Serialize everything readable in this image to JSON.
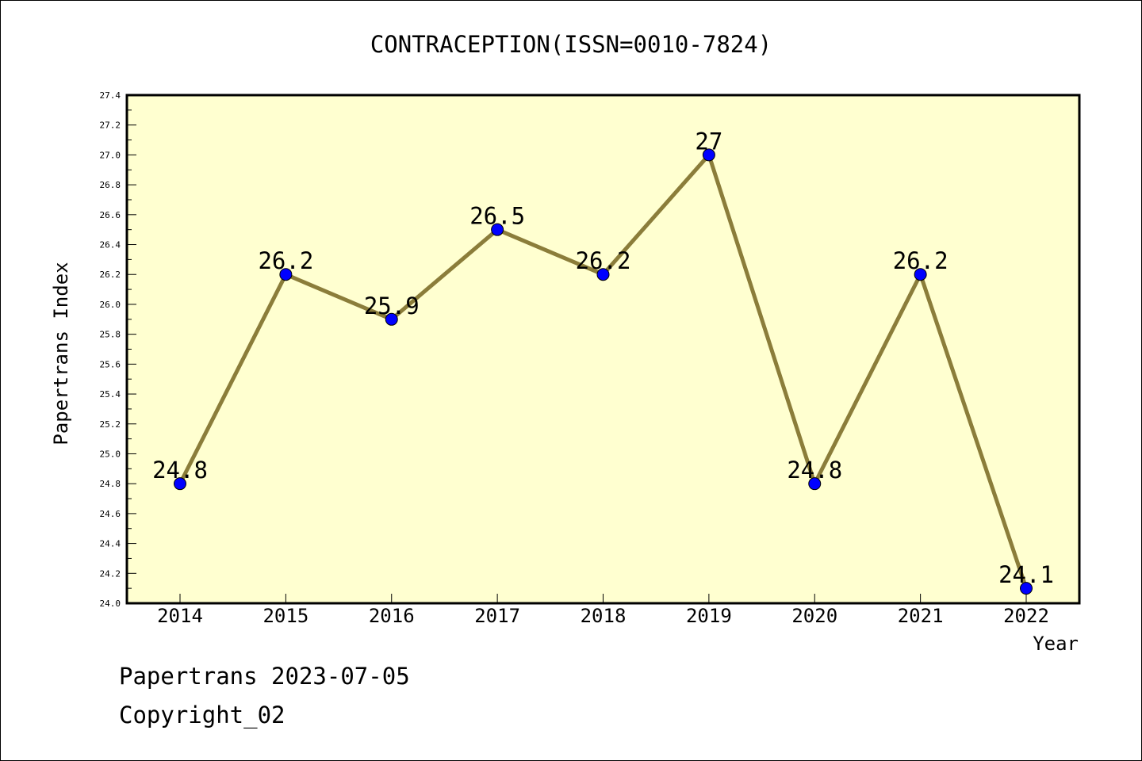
{
  "chart_data": {
    "type": "line",
    "title": "CONTRACEPTION(ISSN=0010-7824)",
    "xlabel": "Year",
    "ylabel": "Papertrans Index",
    "categories": [
      "2014",
      "2015",
      "2016",
      "2017",
      "2018",
      "2019",
      "2020",
      "2021",
      "2022"
    ],
    "values": [
      24.8,
      26.2,
      25.9,
      26.5,
      26.2,
      27,
      24.8,
      26.2,
      24.1
    ],
    "data_labels": [
      "24.8",
      "26.2",
      "25.9",
      "26.5",
      "26.2",
      "27",
      "24.8",
      "26.2",
      "24.1"
    ],
    "ylim": [
      24.0,
      27.4
    ],
    "yticks": [
      "24.0",
      "24.2",
      "24.4",
      "24.6",
      "24.8",
      "25.0",
      "25.2",
      "25.4",
      "25.6",
      "25.8",
      "26.0",
      "26.2",
      "26.4",
      "26.6",
      "26.8",
      "27.0",
      "27.2",
      "27.4"
    ],
    "grid": false,
    "colors": {
      "line": "#8B7D3A",
      "marker": "#0000FF",
      "plot_background": "#FFFFD0"
    }
  },
  "footer": {
    "line1": "Papertrans 2023-07-05",
    "line2": "Copyright_02"
  }
}
